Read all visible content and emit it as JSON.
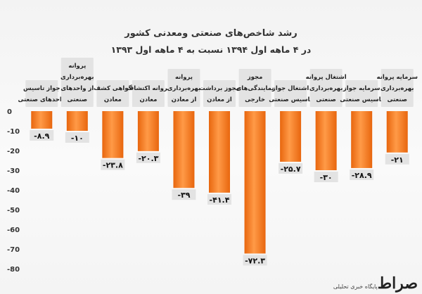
{
  "title": "رشد شاخص‌های صنعتی ومعدنی کشور",
  "subtitle": "در ۴ ماهه اول ۱۳۹۴ نسبت به ۴ ماهه اول ۱۳۹۳",
  "watermark": {
    "logo": "صراط",
    "text": "پایگاه خبری تحلیلی"
  },
  "colors": {
    "bar_top": "#ff9a47",
    "bar_bottom": "#e8660e",
    "label_box": "#e3e3e3",
    "axis_text": "#333333"
  },
  "chart_data": {
    "type": "bar",
    "categories": [
      "جواز تاسیس واحدهای صنعتی",
      "پروانه بهره‌برداری از واحدهای صنعتی",
      "گواهی کشف معادن",
      "پروانه اکتشاف معادن",
      "پروانه بهره‌برداری از معادن",
      "مجوز برداشت از معادن",
      "مجوز نمایندگی‌های خارجی",
      "اشتغال جواز تاسیس صنعتی",
      "اشتغال پروانه بهره‌برداری صنعتی",
      "سرمایه جواز تاسیس صنعتی",
      "سرمایه پروانه بهره‌برداری صنعتی"
    ],
    "values": [
      -8.9,
      -10,
      -23.8,
      -20.3,
      -39,
      -41.4,
      -72.3,
      -25.7,
      -30,
      -28.9,
      -21
    ],
    "value_labels": [
      "-۸.۹",
      "-۱۰",
      "-۲۳.۸",
      "-۲۰.۳",
      "-۳۹",
      "-۴۱.۴",
      "-۷۲.۳",
      "-۲۵.۷",
      "-۳۰",
      "-۲۸.۹",
      "-۲۱"
    ],
    "yticks": [
      "0",
      "-10",
      "-20",
      "-30",
      "-40",
      "-50",
      "-60",
      "-70",
      "-80"
    ],
    "ylim": [
      -80,
      0
    ],
    "grid": false,
    "legend": "none"
  }
}
